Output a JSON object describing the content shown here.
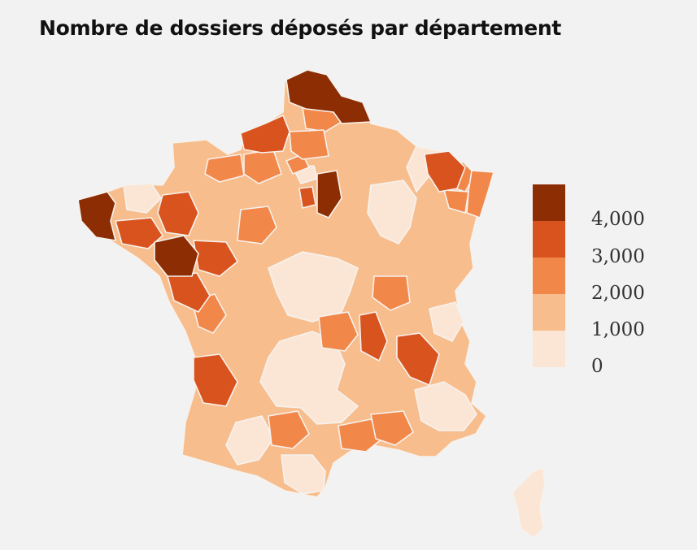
{
  "title": "Nombre de dossiers déposés par département",
  "palette": {
    "c4": "#8c2d04",
    "c3": "#d9531e",
    "c2": "#f2874a",
    "c1": "#f8bd8c",
    "c0": "#fbe6d6",
    "border": "#f6f2ee"
  },
  "legend": {
    "labels": [
      "4,000",
      "3,000",
      "2,000",
      "1,000",
      "0"
    ],
    "colors": [
      "#8c2d04",
      "#d9531e",
      "#f2874a",
      "#f8bd8c",
      "#fbe6d6"
    ]
  },
  "regions": [
    {
      "name": "nord-pas-de-calais",
      "level": 4
    },
    {
      "name": "finistere",
      "level": 4
    },
    {
      "name": "mayenne-sarthe",
      "level": 4
    },
    {
      "name": "seine-et-marne",
      "level": 4
    },
    {
      "name": "normandie-coast",
      "level": 3
    },
    {
      "name": "ille-et-vilaine",
      "level": 3
    },
    {
      "name": "morbihan",
      "level": 3
    },
    {
      "name": "maine-et-loire",
      "level": 3
    },
    {
      "name": "vendee",
      "level": 3
    },
    {
      "name": "gironde",
      "level": 3
    },
    {
      "name": "moselle",
      "level": 3
    },
    {
      "name": "isere",
      "level": 3
    },
    {
      "name": "rhone",
      "level": 3
    },
    {
      "name": "val-de-marne",
      "level": 3
    },
    {
      "name": "ain",
      "level": 2
    },
    {
      "name": "loiret",
      "level": 2
    },
    {
      "name": "bas-rhin",
      "level": 2
    },
    {
      "name": "puy-de-dome",
      "level": 2
    },
    {
      "name": "gard",
      "level": 2
    },
    {
      "name": "corse",
      "level": 0
    }
  ]
}
